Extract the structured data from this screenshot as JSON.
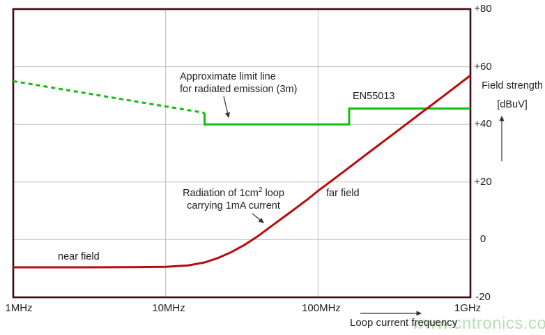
{
  "colors": {
    "limit_green": "#12bd12",
    "radiation_red": "#b80b0b",
    "plot_border": "#3b0d0d",
    "gridline": "#bdbdbd",
    "text": "#1f1f1f",
    "arrow": "#333333",
    "watermark_green": "#b5deb0"
  },
  "watermark": {
    "text": "www.cntronics.com"
  },
  "axes": {
    "x": {
      "title": "Loop current frequency",
      "scale": "log",
      "range_mhz": [
        1,
        1000
      ],
      "tick_labels": [
        "1MHz",
        "10MHz",
        "100MHz",
        "1GHz"
      ],
      "tick_values_mhz": [
        1,
        10,
        100,
        1000
      ],
      "gridline_values_mhz": [
        10,
        100
      ]
    },
    "y": {
      "title_line1": "Field strength",
      "title_line2": "[dBuV]",
      "range": [
        -20,
        80
      ],
      "tick_labels": [
        "+80",
        "+60",
        "+40",
        "+20",
        "0",
        "-20"
      ],
      "tick_values": [
        80,
        60,
        40,
        20,
        0,
        -20
      ],
      "gridline_values": [
        60,
        40,
        20,
        0
      ]
    }
  },
  "chart_data": {
    "type": "line",
    "title": "",
    "xlabel": "Loop current frequency",
    "ylabel": "Field strength [dBuV]",
    "x_scale": "log",
    "xlim_mhz": [
      1,
      1000
    ],
    "ylim": [
      -20,
      80
    ],
    "grid": true,
    "series": [
      {
        "name": "en55013-limit-extrapolated",
        "legend": "Approximate limit line for radiated emission (3m) - extrapolated",
        "style": "dashed",
        "color": "#12bd12",
        "points_mhz_dbuv": [
          [
            1,
            55
          ],
          [
            18,
            44
          ]
        ]
      },
      {
        "name": "en55013-limit",
        "legend": "EN55013",
        "style": "solid",
        "color": "#12bd12",
        "points_mhz_dbuv": [
          [
            18,
            44
          ],
          [
            18,
            40
          ],
          [
            160,
            40
          ],
          [
            160,
            45.5
          ],
          [
            1000,
            45.5
          ]
        ]
      },
      {
        "name": "loop-radiation",
        "legend": "Radiation of 1cm2 loop carrying 1mA current",
        "style": "solid",
        "color": "#b80b0b",
        "points_mhz_dbuv": [
          [
            1,
            -9.6
          ],
          [
            3,
            -9.6
          ],
          [
            6,
            -9.55
          ],
          [
            10,
            -9.4
          ],
          [
            14,
            -8.95
          ],
          [
            18,
            -7.9
          ],
          [
            22,
            -6.4
          ],
          [
            27,
            -4.3
          ],
          [
            33,
            -1.8
          ],
          [
            40,
            1.1
          ],
          [
            50,
            4.9
          ],
          [
            65,
            9.3
          ],
          [
            85,
            13.9
          ],
          [
            100,
            16.9
          ],
          [
            150,
            23.9
          ],
          [
            220,
            30.6
          ],
          [
            320,
            37.1
          ],
          [
            470,
            43.8
          ],
          [
            700,
            50.7
          ],
          [
            1000,
            57
          ]
        ]
      }
    ]
  },
  "annotations": {
    "limit_label": {
      "line1": "Approximate limit line",
      "line2": "for radiated emission (3m)"
    },
    "standard_label": "EN55013",
    "radiation_label": {
      "line1_pre": "Radiation of 1cm",
      "line1_sup": "2",
      "line1_post": " loop",
      "line2": "carrying 1mA current"
    },
    "near_field": "near field",
    "far_field": "far field"
  }
}
